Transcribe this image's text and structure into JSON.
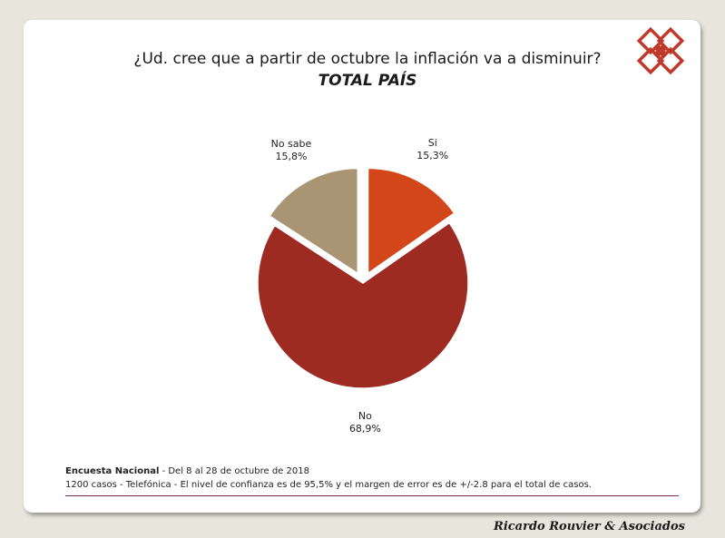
{
  "header": {
    "title": "¿Ud. cree que a partir de octubre la inflación va a disminuir?",
    "subtitle": "TOTAL PAÍS"
  },
  "chart_data": {
    "type": "pie",
    "title": "¿Ud. cree que a partir de octubre la inflación va a disminuir?",
    "subtitle": "TOTAL PAÍS",
    "slices": [
      {
        "label": "Si",
        "value": 15.3,
        "value_label": "15,3%",
        "color": "#d2461a"
      },
      {
        "label": "No",
        "value": 68.9,
        "value_label": "68,9%",
        "color": "#9e2b22"
      },
      {
        "label": "No sabe",
        "value": 15.8,
        "value_label": "15,8%",
        "color": "#a99474"
      }
    ],
    "start": "12 o'clock",
    "direction": "clockwise",
    "exploded": [
      "Si",
      "No sabe"
    ]
  },
  "footer": {
    "survey_label": "Encuesta Nacional",
    "survey_dates": " - Del 8 al 28 de octubre de 2018",
    "methodology": "1200 casos - Telefónica  - El nivel de confianza es de 95,5% y el margen de error es de +/-2.8 para el total de casos."
  },
  "brand": "Ricardo Rouvier & Asociados",
  "logo": {
    "icon": "diamond-logo-icon",
    "color": "#c0392b"
  }
}
